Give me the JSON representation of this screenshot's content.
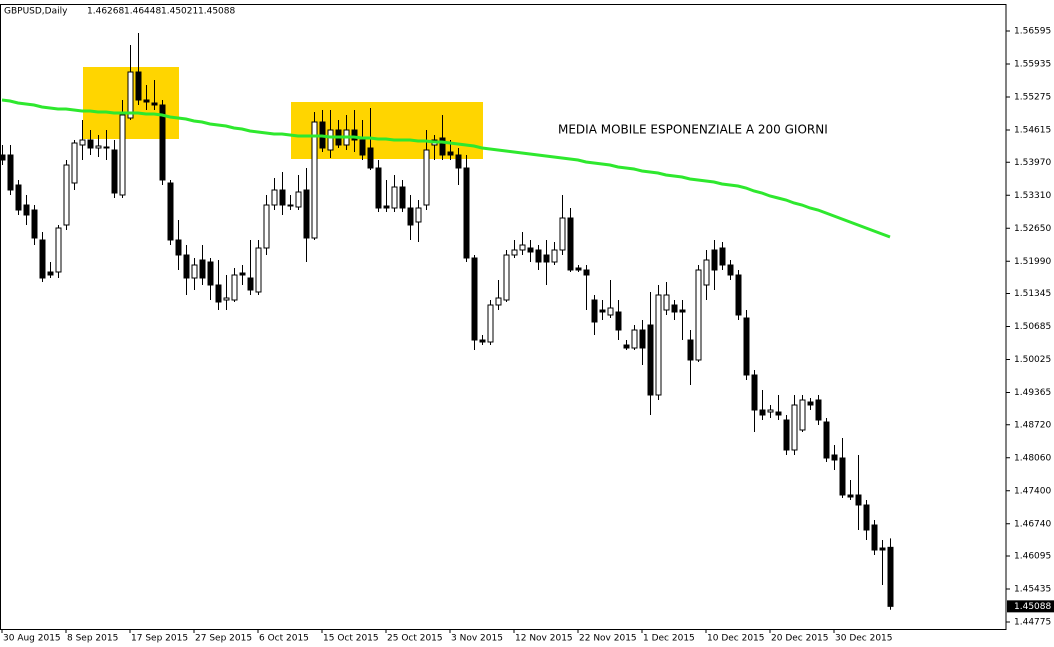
{
  "chart_data": {
    "type": "candlestick",
    "title": "GBPUSD,Daily",
    "annotation": "MEDIA MOBILE ESPONENZIALE A 200 GIORNI",
    "up_color": "#ffffff",
    "down_color": "#000000",
    "highlight_color": "#ffd500",
    "categories": [
      "30 Aug 2015",
      null,
      null,
      null,
      null,
      null,
      null,
      null,
      "8 Sep 2015",
      null,
      null,
      null,
      null,
      null,
      null,
      null,
      "17 Sep 2015",
      null,
      null,
      null,
      null,
      null,
      null,
      null,
      "27 Sep 2015",
      null,
      null,
      null,
      null,
      null,
      null,
      null,
      "6 Oct 2015",
      null,
      null,
      null,
      null,
      null,
      null,
      null,
      "15 Oct 2015",
      null,
      null,
      null,
      null,
      null,
      null,
      null,
      "25 Oct 2015",
      null,
      null,
      null,
      null,
      null,
      null,
      null,
      "3 Nov 2015",
      null,
      null,
      null,
      null,
      null,
      null,
      null,
      "12 Nov 2015",
      null,
      null,
      null,
      null,
      null,
      null,
      null,
      "22 Nov 2015",
      null,
      null,
      null,
      null,
      null,
      null,
      null,
      "1 Dec 2015",
      null,
      null,
      null,
      null,
      null,
      null,
      null,
      "10 Dec 2015",
      null,
      null,
      null,
      null,
      null,
      null,
      null,
      "20 Dec 2015",
      null,
      null,
      null,
      null,
      null,
      null,
      null,
      "30 Dec 2015",
      null,
      null,
      null,
      null,
      null,
      null,
      null
    ],
    "open": [
      1.54115,
      1.54115,
      1.53515,
      1.53115,
      1.53015,
      1.52415,
      1.51775,
      1.51775,
      1.52715,
      1.53555,
      1.54315,
      1.54415,
      1.54255,
      1.54275,
      1.54215,
      1.53315,
      1.54855,
      1.55775,
      1.55215,
      1.55155,
      1.55115,
      1.53555,
      1.52415,
      1.52115,
      1.51655,
      1.52015,
      1.51975,
      1.51515,
      1.51215,
      1.51215,
      1.51755,
      1.51655,
      1.51375,
      1.52255,
      1.53115,
      1.53415,
      1.53115,
      1.53075,
      1.53415,
      1.52455,
      1.54775,
      1.54215,
      1.54615,
      1.54315,
      1.54615,
      1.54415,
      1.54255,
      1.53855,
      1.53095,
      1.53055,
      1.53475,
      1.53055,
      1.52775,
      1.53115,
      1.54315,
      1.54455,
      1.54175,
      1.54115,
      1.53855,
      1.52055,
      1.50415,
      1.50375,
      1.51115,
      1.51215,
      1.52115,
      1.52215,
      1.52255,
      1.52215,
      1.52115,
      1.51975,
      1.52215,
      1.52855,
      1.51855,
      1.51815,
      1.51215,
      1.51015,
      1.50915,
      1.50975,
      1.50315,
      1.50255,
      1.50615,
      1.50715,
      1.49315,
      1.51015,
      1.51115,
      1.51015,
      1.50415,
      1.50015,
      1.51515,
      1.52215,
      1.52255,
      1.51915,
      1.51715,
      1.50855,
      1.49715,
      1.49015,
      1.48975,
      1.48975,
      1.48815,
      1.48215,
      1.48615,
      1.49175,
      1.49215,
      1.48775,
      1.48115,
      1.48055,
      1.47315,
      1.47315,
      1.47115,
      1.46715,
      1.46255,
      1.46268
    ],
    "high": [
      1.54315,
      1.54315,
      1.53615,
      1.53315,
      1.53115,
      1.52575,
      1.51975,
      1.52715,
      1.54015,
      1.54415,
      1.54815,
      1.54615,
      1.54515,
      1.54615,
      1.54415,
      1.55215,
      1.56315,
      1.56555,
      1.55515,
      1.55615,
      1.55215,
      1.53615,
      1.52815,
      1.52315,
      1.52055,
      1.52315,
      1.52055,
      1.52015,
      1.51715,
      1.51855,
      1.51915,
      1.52415,
      1.52415,
      1.53315,
      1.53655,
      1.53775,
      1.53315,
      1.53715,
      1.53855,
      1.54975,
      1.55015,
      1.55015,
      1.54815,
      1.54915,
      1.55015,
      1.54815,
      1.55055,
      1.54015,
      1.53615,
      1.53715,
      1.53615,
      1.53315,
      1.53215,
      1.54615,
      1.54515,
      1.54915,
      1.54415,
      1.54255,
      1.54115,
      1.52115,
      1.50515,
      1.51215,
      1.51615,
      1.52215,
      1.52415,
      1.52575,
      1.52415,
      1.52315,
      1.52415,
      1.52375,
      1.53315,
      1.53055,
      1.51915,
      1.51915,
      1.51315,
      1.51215,
      1.51615,
      1.51215,
      1.50415,
      1.50715,
      1.50815,
      1.51375,
      1.51515,
      1.51575,
      1.51215,
      1.51215,
      1.50615,
      1.51915,
      1.52215,
      1.52415,
      1.52375,
      1.52015,
      1.51815,
      1.51015,
      1.49815,
      1.49415,
      1.49115,
      1.49315,
      1.48915,
      1.49315,
      1.49315,
      1.49255,
      1.49315,
      1.48855,
      1.48315,
      1.48455,
      1.47615,
      1.48115,
      1.47215,
      1.46815,
      1.46415,
      1.46448
    ],
    "low": [
      1.53915,
      1.53315,
      1.52915,
      1.52715,
      1.52315,
      1.51575,
      1.51655,
      1.51655,
      1.52615,
      1.53415,
      1.54015,
      1.54115,
      1.54075,
      1.54015,
      1.53255,
      1.53255,
      1.54815,
      1.55115,
      1.55015,
      1.55015,
      1.53515,
      1.52315,
      1.51815,
      1.51315,
      1.51415,
      1.51515,
      1.51215,
      1.51015,
      1.51015,
      1.51175,
      1.51515,
      1.51315,
      1.51315,
      1.52115,
      1.53015,
      1.52915,
      1.53015,
      1.53015,
      1.51975,
      1.52415,
      1.54175,
      1.54055,
      1.54255,
      1.54215,
      1.54175,
      1.54015,
      1.53815,
      1.52975,
      1.52975,
      1.52975,
      1.52975,
      1.52415,
      1.52375,
      1.53015,
      1.54015,
      1.54015,
      1.54015,
      1.53515,
      1.51975,
      1.50215,
      1.50315,
      1.50315,
      1.51015,
      1.51175,
      1.52055,
      1.52115,
      1.51975,
      1.51815,
      1.51515,
      1.51915,
      1.52115,
      1.51775,
      1.51775,
      1.51015,
      1.50515,
      1.50815,
      1.50855,
      1.50415,
      1.50215,
      1.50215,
      1.49915,
      1.48915,
      1.49215,
      1.50915,
      1.50815,
      1.50415,
      1.49515,
      1.49975,
      1.51215,
      1.51415,
      1.51815,
      1.51615,
      1.50815,
      1.49615,
      1.48575,
      1.48815,
      1.48855,
      1.48815,
      1.48115,
      1.48115,
      1.48575,
      1.49015,
      1.48715,
      1.47975,
      1.47815,
      1.47255,
      1.47215,
      1.46615,
      1.46415,
      1.46115,
      1.45515,
      1.45021
    ],
    "close": [
      1.54015,
      1.53415,
      1.53015,
      1.52915,
      1.52455,
      1.51655,
      1.51715,
      1.52655,
      1.53915,
      1.54355,
      1.54415,
      1.54255,
      1.54295,
      1.54255,
      1.53355,
      1.54915,
      1.55775,
      1.55215,
      1.55175,
      1.55115,
      1.53615,
      1.52415,
      1.52115,
      1.51655,
      1.51915,
      1.51655,
      1.51515,
      1.51175,
      1.51255,
      1.51715,
      1.51715,
      1.51415,
      1.52255,
      1.53115,
      1.53415,
      1.53115,
      1.53095,
      1.53375,
      1.52455,
      1.54775,
      1.54255,
      1.54615,
      1.54315,
      1.54615,
      1.54415,
      1.54115,
      1.53855,
      1.53055,
      1.53055,
      1.53475,
      1.53055,
      1.52715,
      1.53055,
      1.54215,
      1.54415,
      1.54115,
      1.54115,
      1.53855,
      1.52055,
      1.50415,
      1.50375,
      1.51115,
      1.51255,
      1.52115,
      1.52215,
      1.52315,
      1.52175,
      1.51975,
      1.51975,
      1.52215,
      1.52855,
      1.51815,
      1.51815,
      1.51715,
      1.50775,
      1.50975,
      1.51055,
      1.50615,
      1.50255,
      1.50615,
      1.50255,
      1.49315,
      1.51315,
      1.51315,
      1.50975,
      1.50975,
      1.50015,
      1.51815,
      1.52015,
      1.51815,
      1.51915,
      1.51715,
      1.50915,
      1.49715,
      1.49015,
      1.48915,
      1.49015,
      1.48915,
      1.48215,
      1.49115,
      1.49215,
      1.49115,
      1.48815,
      1.48055,
      1.48015,
      1.47315,
      1.47275,
      1.47115,
      1.46615,
      1.46215,
      1.46215,
      1.45088
    ],
    "line_series": [
      {
        "color": "#2ee82e",
        "values": [
          1.55215,
          1.55195,
          1.55155,
          1.55135,
          1.55115,
          1.55075,
          1.55055,
          1.55035,
          1.55035,
          1.55015,
          1.54995,
          1.54995,
          1.54975,
          1.54975,
          1.54955,
          1.54955,
          1.54955,
          1.54955,
          1.54935,
          1.54935,
          1.54915,
          1.54875,
          1.54855,
          1.54835,
          1.54795,
          1.54775,
          1.54735,
          1.54715,
          1.54695,
          1.54655,
          1.54635,
          1.54595,
          1.54575,
          1.54555,
          1.54535,
          1.54535,
          1.54515,
          1.54495,
          1.54495,
          1.54495,
          1.54495,
          1.54475,
          1.54475,
          1.54475,
          1.54475,
          1.54455,
          1.54455,
          1.54435,
          1.54435,
          1.54415,
          1.54415,
          1.54415,
          1.54395,
          1.54395,
          1.54375,
          1.54375,
          1.54355,
          1.54335,
          1.54315,
          1.54295,
          1.54255,
          1.54235,
          1.54215,
          1.54195,
          1.54175,
          1.54155,
          1.54135,
          1.54115,
          1.54095,
          1.54075,
          1.54055,
          1.54035,
          1.54015,
          1.53975,
          1.53955,
          1.53935,
          1.53915,
          1.53875,
          1.53855,
          1.53835,
          1.53795,
          1.53775,
          1.53755,
          1.53715,
          1.53695,
          1.53675,
          1.53635,
          1.53615,
          1.53595,
          1.53575,
          1.53535,
          1.53515,
          1.53495,
          1.53455,
          1.53395,
          1.53355,
          1.53295,
          1.53255,
          1.53215,
          1.53155,
          1.53115,
          1.53055,
          1.53015,
          1.52955,
          1.52895,
          1.52835,
          1.52775,
          1.52715,
          1.52655,
          1.52595,
          1.52535,
          1.52475
        ]
      }
    ],
    "ylim": [
      1.44635,
      1.57135
    ],
    "yticks": [
      1.56595,
      1.55935,
      1.55275,
      1.54615,
      {
        "value": 1.5397,
        "label": "1.53970"
      },
      {
        "value": 1.5331,
        "label": "1.53310"
      },
      {
        "value": 1.5265,
        "label": "1.52650"
      },
      {
        "value": 1.5199,
        "label": "1.51990"
      },
      1.51345,
      1.50685,
      1.50025,
      1.49365,
      {
        "value": 1.4872,
        "label": "1.48720"
      },
      {
        "value": 1.4806,
        "label": "1.48060"
      },
      {
        "value": 1.474,
        "label": "1.47400"
      },
      {
        "value": 1.4674,
        "label": "1.46740"
      },
      1.46095,
      1.45435,
      1.44775
    ],
    "grid": false
  }
}
